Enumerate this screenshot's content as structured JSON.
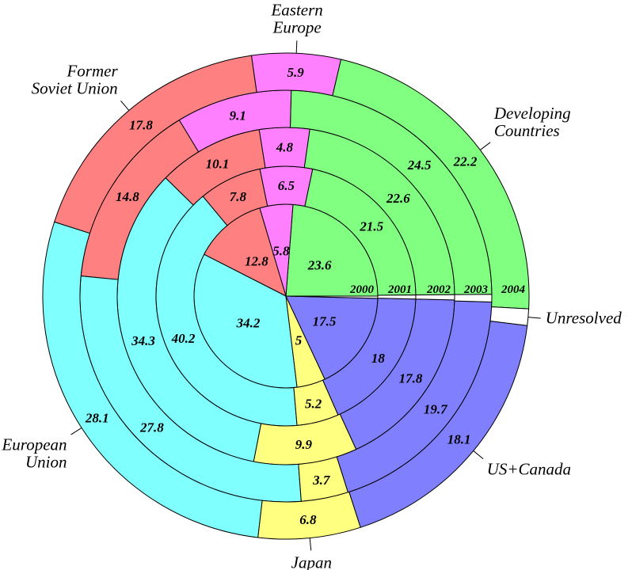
{
  "chart_data": {
    "type": "pie",
    "variant": "concentric-rings",
    "rings": [
      "2000",
      "2001",
      "2002",
      "2003",
      "2004"
    ],
    "legend": "labels-around-outer-ring",
    "categories": [
      {
        "key": "dev",
        "label_lines": [
          "Developing",
          "Countries"
        ],
        "color": "#80ff80"
      },
      {
        "key": "ee",
        "label_lines": [
          "Eastern",
          "Europe"
        ],
        "color": "#ff80ff"
      },
      {
        "key": "fsu",
        "label_lines": [
          "Former",
          "Soviet Union"
        ],
        "color": "#ff8080"
      },
      {
        "key": "eu",
        "label_lines": [
          "European",
          "Union"
        ],
        "color": "#80ffff"
      },
      {
        "key": "jp",
        "label_lines": [
          "Japan"
        ],
        "color": "#ffff80"
      },
      {
        "key": "us",
        "label_lines": [
          "US+Canada"
        ],
        "color": "#8080ff"
      },
      {
        "key": "un",
        "label_lines": [
          "Unresolved"
        ],
        "color": "#ffffff"
      }
    ],
    "series": [
      {
        "name": "2000",
        "values": {
          "dev": 23.6,
          "ee": 5.8,
          "fsu": 12.8,
          "eu": 34.2,
          "jp": 5,
          "us": 17.5,
          "un": 0.4
        }
      },
      {
        "name": "2001",
        "values": {
          "dev": 21.5,
          "ee": 6.5,
          "fsu": 7.8,
          "eu": 40.2,
          "jp": 5.2,
          "us": 18,
          "un": 0.5
        }
      },
      {
        "name": "2002",
        "values": {
          "dev": 22.6,
          "ee": 4.8,
          "fsu": 10.1,
          "eu": 34.3,
          "jp": 9.9,
          "us": 17.8,
          "un": 0.5
        }
      },
      {
        "name": "2003",
        "values": {
          "dev": 24.5,
          "ee": 9.1,
          "fsu": 14.8,
          "eu": 27.8,
          "jp": 3.7,
          "us": 19.7,
          "un": 0.6
        }
      },
      {
        "name": "2004",
        "values": {
          "dev": 22.2,
          "ee": 5.9,
          "fsu": 17.8,
          "eu": 28.1,
          "jp": 6.8,
          "us": 18.1,
          "un": 1.1
        }
      }
    ]
  }
}
